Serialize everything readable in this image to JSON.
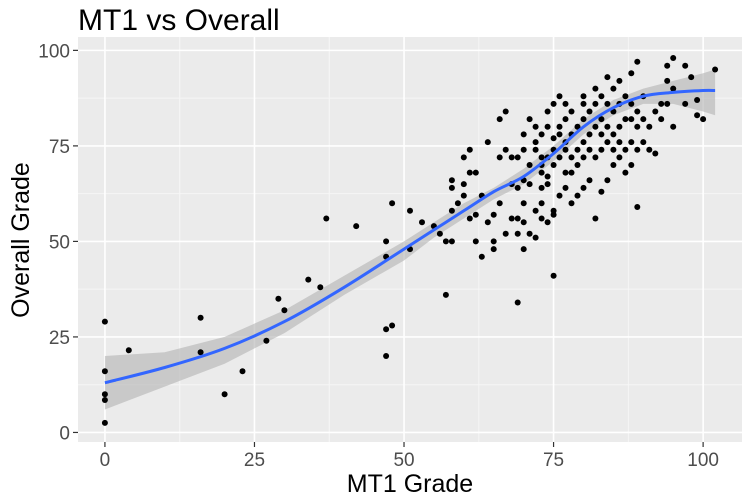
{
  "chart_data": {
    "type": "scatter",
    "title": "MT1 vs Overall",
    "xlabel": "MT1 Grade",
    "ylabel": "Overall Grade",
    "xlim": [
      -4.5,
      106.5
    ],
    "ylim": [
      -2.5,
      103.5
    ],
    "x_ticks": [
      0,
      25,
      50,
      75,
      100
    ],
    "y_ticks": [
      0,
      25,
      50,
      75,
      100
    ],
    "x_tick_labels": [
      "0",
      "25",
      "50",
      "75",
      "100"
    ],
    "y_tick_labels": [
      "0",
      "25",
      "50",
      "75",
      "100"
    ],
    "grid": true,
    "legend": "none",
    "colors": {
      "panel": "#ebebeb",
      "grid_major": "#ffffff",
      "points": "#000000",
      "smooth_line": "#3366ff",
      "confidence_band": "#b3b3b3"
    },
    "points": [
      [
        0,
        2.5
      ],
      [
        0,
        8.5
      ],
      [
        0,
        10
      ],
      [
        0,
        16
      ],
      [
        0,
        29
      ],
      [
        4,
        21.5
      ],
      [
        16,
        30
      ],
      [
        16,
        21
      ],
      [
        20,
        10
      ],
      [
        23,
        16
      ],
      [
        27,
        24
      ],
      [
        29,
        35
      ],
      [
        30,
        32
      ],
      [
        34,
        40
      ],
      [
        36,
        38
      ],
      [
        37,
        56
      ],
      [
        42,
        54
      ],
      [
        47,
        20
      ],
      [
        47,
        27
      ],
      [
        47,
        46
      ],
      [
        47,
        50
      ],
      [
        48,
        28
      ],
      [
        48,
        60
      ],
      [
        51,
        48
      ],
      [
        51,
        58
      ],
      [
        53,
        55
      ],
      [
        55,
        54
      ],
      [
        56,
        52
      ],
      [
        57,
        36
      ],
      [
        57,
        50
      ],
      [
        58,
        50
      ],
      [
        58,
        58
      ],
      [
        58,
        64
      ],
      [
        58,
        66
      ],
      [
        59,
        60
      ],
      [
        60,
        62
      ],
      [
        60,
        65
      ],
      [
        60,
        72
      ],
      [
        61,
        56
      ],
      [
        61,
        68
      ],
      [
        61,
        74
      ],
      [
        62,
        57
      ],
      [
        62,
        50
      ],
      [
        62,
        68
      ],
      [
        63,
        46
      ],
      [
        63,
        62
      ],
      [
        64,
        76
      ],
      [
        64,
        55
      ],
      [
        65,
        48
      ],
      [
        65,
        57
      ],
      [
        65,
        50
      ],
      [
        66,
        72
      ],
      [
        66,
        82
      ],
      [
        66,
        60
      ],
      [
        67,
        84
      ],
      [
        67,
        74
      ],
      [
        67,
        52
      ],
      [
        68,
        56
      ],
      [
        68,
        72
      ],
      [
        68,
        65
      ],
      [
        69,
        34
      ],
      [
        69,
        64
      ],
      [
        69,
        72
      ],
      [
        69,
        56
      ],
      [
        69,
        52
      ],
      [
        70,
        55
      ],
      [
        70,
        48
      ],
      [
        70,
        60
      ],
      [
        70,
        66
      ],
      [
        70,
        74
      ],
      [
        70,
        78
      ],
      [
        71,
        82
      ],
      [
        71,
        70
      ],
      [
        71,
        52
      ],
      [
        71,
        65
      ],
      [
        72,
        51
      ],
      [
        72,
        58
      ],
      [
        72,
        74
      ],
      [
        72,
        76
      ],
      [
        72,
        80
      ],
      [
        73,
        72
      ],
      [
        73,
        68
      ],
      [
        73,
        56
      ],
      [
        73,
        60
      ],
      [
        73,
        64
      ],
      [
        73,
        70
      ],
      [
        73,
        78
      ],
      [
        74,
        55
      ],
      [
        74,
        72
      ],
      [
        74,
        65
      ],
      [
        74,
        67
      ],
      [
        74,
        80
      ],
      [
        74,
        84
      ],
      [
        75,
        86
      ],
      [
        75,
        77
      ],
      [
        75,
        41
      ],
      [
        75,
        70
      ],
      [
        75,
        74
      ],
      [
        75,
        57
      ],
      [
        75,
        58
      ],
      [
        76,
        62
      ],
      [
        76,
        72
      ],
      [
        76,
        78
      ],
      [
        76,
        80
      ],
      [
        76,
        88
      ],
      [
        77,
        64
      ],
      [
        77,
        68
      ],
      [
        77,
        74
      ],
      [
        77,
        76
      ],
      [
        77,
        82
      ],
      [
        77,
        86
      ],
      [
        78,
        60
      ],
      [
        78,
        68
      ],
      [
        78,
        72
      ],
      [
        78,
        78
      ],
      [
        78,
        84
      ],
      [
        79,
        62
      ],
      [
        79,
        70
      ],
      [
        79,
        74
      ],
      [
        79,
        80
      ],
      [
        80,
        64
      ],
      [
        80,
        72
      ],
      [
        80,
        76
      ],
      [
        80,
        82
      ],
      [
        80,
        86
      ],
      [
        80,
        88
      ],
      [
        81,
        66
      ],
      [
        81,
        74
      ],
      [
        81,
        78
      ],
      [
        81,
        84
      ],
      [
        82,
        56
      ],
      [
        82,
        72
      ],
      [
        82,
        80
      ],
      [
        82,
        86
      ],
      [
        82,
        90
      ],
      [
        83,
        63
      ],
      [
        83,
        74
      ],
      [
        83,
        78
      ],
      [
        83,
        82
      ],
      [
        83,
        88
      ],
      [
        84,
        66
      ],
      [
        84,
        76
      ],
      [
        84,
        80
      ],
      [
        84,
        86
      ],
      [
        84,
        93
      ],
      [
        85,
        70
      ],
      [
        85,
        74
      ],
      [
        85,
        78
      ],
      [
        85,
        84
      ],
      [
        85,
        90
      ],
      [
        86,
        72
      ],
      [
        86,
        76
      ],
      [
        86,
        80
      ],
      [
        86,
        86
      ],
      [
        86,
        92
      ],
      [
        87,
        68
      ],
      [
        87,
        74
      ],
      [
        87,
        82
      ],
      [
        87,
        88
      ],
      [
        88,
        70
      ],
      [
        88,
        76
      ],
      [
        88,
        82
      ],
      [
        88,
        86
      ],
      [
        88,
        94
      ],
      [
        89,
        59
      ],
      [
        89,
        74
      ],
      [
        89,
        80
      ],
      [
        89,
        84
      ],
      [
        89,
        97
      ],
      [
        90,
        76
      ],
      [
        90,
        82
      ],
      [
        90,
        88
      ],
      [
        91,
        74
      ],
      [
        91,
        80
      ],
      [
        92,
        73
      ],
      [
        92,
        84
      ],
      [
        93,
        82
      ],
      [
        93,
        86
      ],
      [
        94,
        86
      ],
      [
        94,
        92
      ],
      [
        94,
        96
      ],
      [
        95,
        90
      ],
      [
        95,
        80
      ],
      [
        95,
        98
      ],
      [
        97,
        86
      ],
      [
        97,
        96
      ],
      [
        98,
        93
      ],
      [
        99,
        87
      ],
      [
        99,
        83
      ],
      [
        100,
        82
      ],
      [
        102,
        95
      ]
    ],
    "smooth": {
      "method": "loess",
      "x": [
        0,
        10,
        20,
        30,
        40,
        50,
        55,
        60,
        65,
        70,
        75,
        80,
        85,
        90,
        95,
        100,
        102
      ],
      "y": [
        13,
        17,
        22,
        29,
        38,
        48,
        53,
        58,
        63,
        67,
        73,
        80,
        85,
        88,
        89,
        89.5,
        89.5
      ],
      "lower": [
        6,
        12,
        18,
        26,
        36,
        45,
        51,
        56,
        61,
        65,
        71,
        78,
        83,
        86,
        86,
        84,
        83
      ],
      "upper": [
        20,
        21,
        25,
        32,
        41,
        50,
        55,
        60,
        64,
        69,
        75,
        82,
        87,
        90,
        92,
        94,
        95
      ]
    }
  }
}
